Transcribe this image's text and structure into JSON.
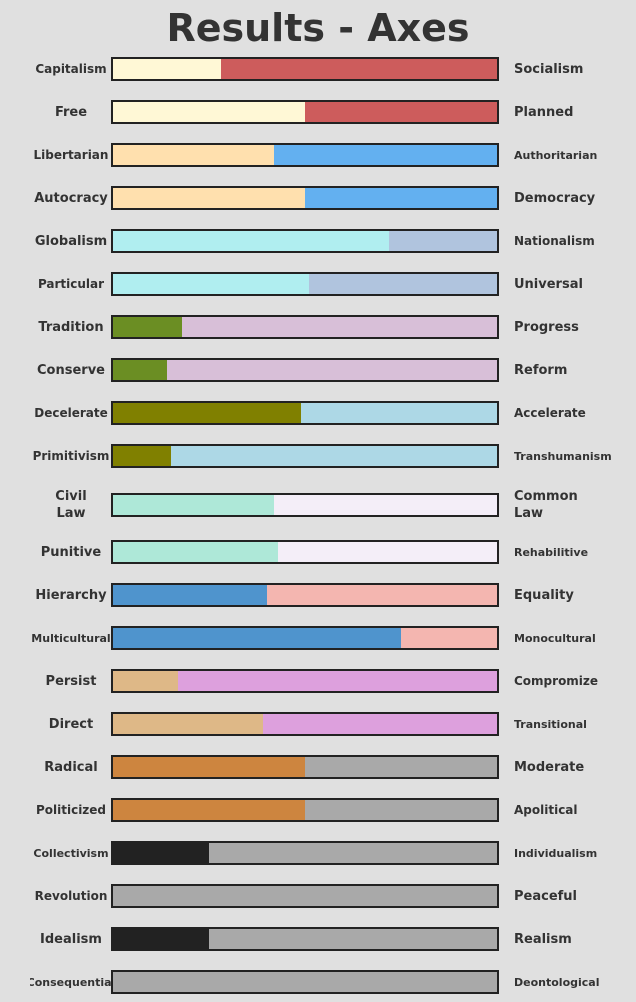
{
  "title": "Results - Axes",
  "rows": [
    {
      "left": [
        "Capitalism"
      ],
      "right": [
        "Socialism"
      ],
      "left_value": 28,
      "right_value": 72,
      "left_color": "#fff8d6",
      "right_color": "#cd5c5c"
    },
    {
      "left": [
        "Free"
      ],
      "right": [
        "Planned"
      ],
      "left_value": 50,
      "right_value": 50,
      "left_color": "#fff8d6",
      "right_color": "#cd5c5c"
    },
    {
      "left": [
        "Libertarian"
      ],
      "right": [
        "Authoritarian"
      ],
      "left_value": 42,
      "right_value": 58,
      "left_color": "#ffe0ae",
      "right_color": "#63b0f0"
    },
    {
      "left": [
        "Autocracy"
      ],
      "right": [
        "Democracy"
      ],
      "left_value": 50,
      "right_value": 50,
      "left_color": "#ffe0ae",
      "right_color": "#63b0f0"
    },
    {
      "left": [
        "Globalism"
      ],
      "right": [
        "Nationalism"
      ],
      "left_value": 72,
      "right_value": 28,
      "left_color": "#b0eef0",
      "right_color": "#b0c4de"
    },
    {
      "left": [
        "Particular"
      ],
      "right": [
        "Universal"
      ],
      "left_value": 51,
      "right_value": 49,
      "left_color": "#b0eef0",
      "right_color": "#b0c4de"
    },
    {
      "left": [
        "Tradition"
      ],
      "right": [
        "Progress"
      ],
      "left_value": 18,
      "right_value": 82,
      "left_color": "#6b8e23",
      "right_color": "#d8bfd8"
    },
    {
      "left": [
        "Conserve"
      ],
      "right": [
        "Reform"
      ],
      "left_value": 14,
      "right_value": 86,
      "left_color": "#6b8e23",
      "right_color": "#d8bfd8"
    },
    {
      "left": [
        "Decelerate"
      ],
      "right": [
        "Accelerate"
      ],
      "left_value": 49,
      "right_value": 51,
      "left_color": "#808000",
      "right_color": "#add8e6"
    },
    {
      "left": [
        "Primitivism"
      ],
      "right": [
        "Transhumanism"
      ],
      "left_value": 15,
      "right_value": 85,
      "left_color": "#808000",
      "right_color": "#add8e6"
    },
    {
      "left": [
        "Civil",
        "Law"
      ],
      "right": [
        "Common",
        "Law"
      ],
      "left_value": 42,
      "right_value": 58,
      "left_color": "#aee8d8",
      "right_color": "#f4eef8"
    },
    {
      "left": [
        "Punitive"
      ],
      "right": [
        "Rehabilitive"
      ],
      "left_value": 43,
      "right_value": 57,
      "left_color": "#aee8d8",
      "right_color": "#f4eef8"
    },
    {
      "left": [
        "Hierarchy"
      ],
      "right": [
        "Equality"
      ],
      "left_value": 40,
      "right_value": 60,
      "left_color": "#4f94cd",
      "right_color": "#f4b6b0"
    },
    {
      "left": [
        "Multicultural"
      ],
      "right": [
        "Monocultural"
      ],
      "left_value": 75,
      "right_value": 25,
      "left_color": "#4f94cd",
      "right_color": "#f4b6b0"
    },
    {
      "left": [
        "Persist"
      ],
      "right": [
        "Compromize"
      ],
      "left_value": 17,
      "right_value": 83,
      "left_color": "#deb887",
      "right_color": "#dda0dd"
    },
    {
      "left": [
        "Direct"
      ],
      "right": [
        "Transitional"
      ],
      "left_value": 39,
      "right_value": 61,
      "left_color": "#deb887",
      "right_color": "#dda0dd"
    },
    {
      "left": [
        "Radical"
      ],
      "right": [
        "Moderate"
      ],
      "left_value": 50,
      "right_value": 50,
      "left_color": "#cd853f",
      "right_color": "#a9a9a9"
    },
    {
      "left": [
        "Politicized"
      ],
      "right": [
        "Apolitical"
      ],
      "left_value": 50,
      "right_value": 50,
      "left_color": "#cd853f",
      "right_color": "#a9a9a9"
    },
    {
      "left": [
        "Collectivism"
      ],
      "right": [
        "Individualism"
      ],
      "left_value": 25,
      "right_value": 75,
      "left_color": "#222222",
      "right_color": "#a9a9a9"
    },
    {
      "left": [
        "Revolution"
      ],
      "right": [
        "Peaceful"
      ],
      "left_value": 0,
      "right_value": 100,
      "left_color": "#222222",
      "right_color": "#a9a9a9"
    },
    {
      "left": [
        "Idealism"
      ],
      "right": [
        "Realism"
      ],
      "left_value": 25,
      "right_value": 75,
      "left_color": "#222222",
      "right_color": "#a9a9a9"
    },
    {
      "left": [
        "Consequential"
      ],
      "right": [
        "Deontological"
      ],
      "left_value": 0,
      "right_value": 100,
      "left_color": "#222222",
      "right_color": "#a9a9a9"
    }
  ]
}
